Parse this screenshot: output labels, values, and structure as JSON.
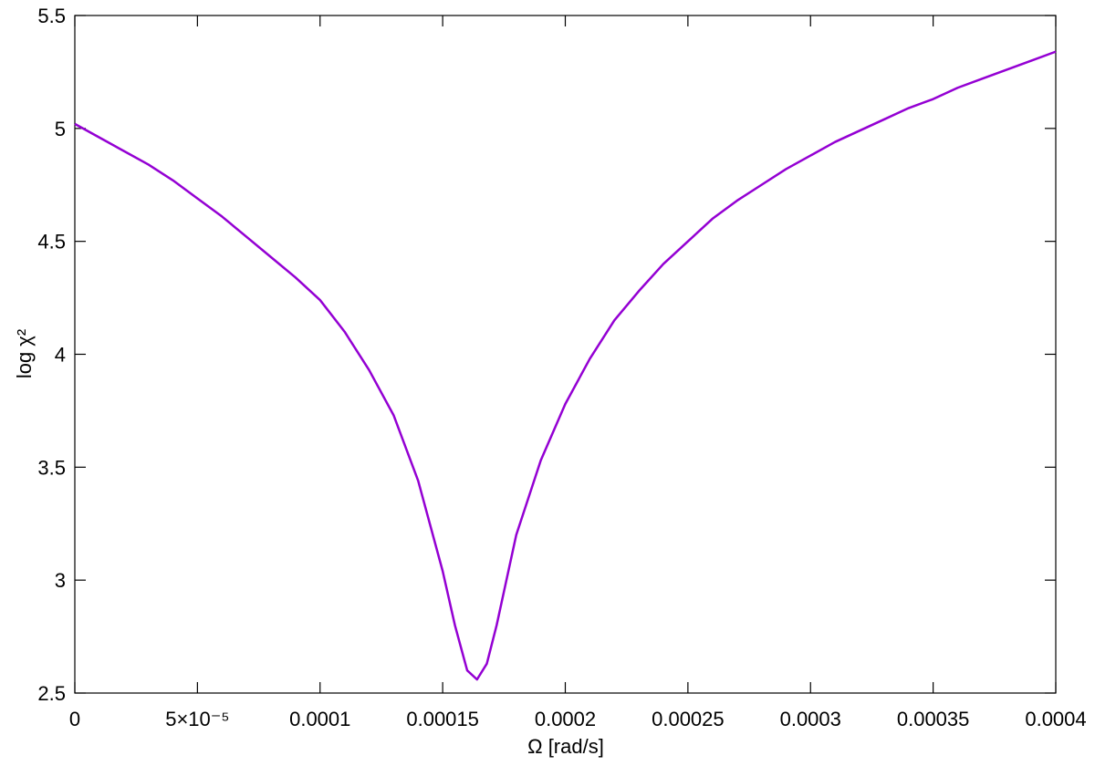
{
  "chart_data": {
    "type": "line",
    "xlabel": "Ω [rad/s]",
    "ylabel": "log χ²",
    "x": [
      0,
      1e-05,
      2e-05,
      3e-05,
      4e-05,
      5e-05,
      6e-05,
      7e-05,
      8e-05,
      9e-05,
      0.0001,
      0.00011,
      0.00012,
      0.00013,
      0.00014,
      0.00015,
      0.000155,
      0.00016,
      0.000164,
      0.000168,
      0.000172,
      0.000176,
      0.00018,
      0.00019,
      0.0002,
      0.00021,
      0.00022,
      0.00023,
      0.00024,
      0.00025,
      0.00026,
      0.00027,
      0.00028,
      0.00029,
      0.0003,
      0.00031,
      0.00032,
      0.00033,
      0.00034,
      0.00035,
      0.00036,
      0.00037,
      0.00038,
      0.00039,
      0.0004
    ],
    "values": [
      5.02,
      4.96,
      4.9,
      4.84,
      4.77,
      4.69,
      4.61,
      4.52,
      4.43,
      4.34,
      4.24,
      4.1,
      3.93,
      3.73,
      3.44,
      3.04,
      2.8,
      2.6,
      2.56,
      2.63,
      2.8,
      3.0,
      3.2,
      3.53,
      3.78,
      3.98,
      4.15,
      4.28,
      4.4,
      4.5,
      4.6,
      4.68,
      4.75,
      4.82,
      4.88,
      4.94,
      4.99,
      5.04,
      5.09,
      5.13,
      5.18,
      5.22,
      5.26,
      5.3,
      5.34
    ],
    "color": "#9400d3",
    "xlim": [
      0,
      0.0004
    ],
    "xticks": [
      0,
      {
        "value": 5e-05,
        "label": "5×10⁻⁵"
      },
      0.0001,
      0.00015,
      0.0002,
      0.00025,
      0.0003,
      0.00035,
      0.0004
    ],
    "ylim": [
      2.5,
      5.5
    ],
    "yticks": [
      2.5,
      3,
      3.5,
      4,
      4.5,
      5,
      5.5
    ]
  }
}
